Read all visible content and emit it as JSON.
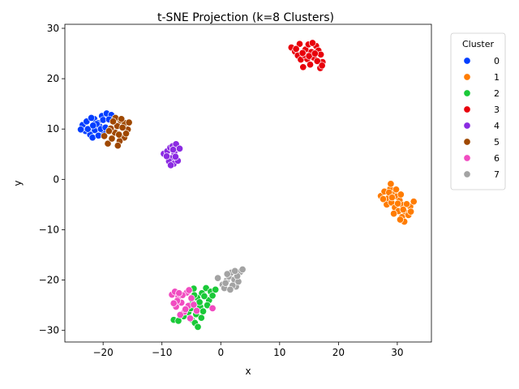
{
  "chart_data": {
    "type": "scatter",
    "title": "t-SNE Projection (k=8 Clusters)",
    "xlabel": "x",
    "ylabel": "y",
    "xlim": [
      -26.5,
      35.8
    ],
    "ylim": [
      -32.3,
      30.8
    ],
    "xticks": [
      -20,
      -10,
      0,
      10,
      20,
      30
    ],
    "yticks": [
      -30,
      -20,
      -10,
      0,
      10,
      20,
      30
    ],
    "grid": false,
    "legend": {
      "title": "Cluster",
      "placement": "outside-right-top",
      "entries": [
        "0",
        "1",
        "2",
        "3",
        "4",
        "5",
        "6",
        "7"
      ]
    },
    "series": [
      {
        "name": "0",
        "color": "#023eff",
        "points": [
          [
            -23.5,
            10.8
          ],
          [
            -22.8,
            11.5
          ],
          [
            -22.1,
            10.2
          ],
          [
            -21.5,
            12.0
          ],
          [
            -20.9,
            11.2
          ],
          [
            -20.2,
            12.6
          ],
          [
            -19.4,
            13.1
          ],
          [
            -18.6,
            12.8
          ],
          [
            -23.0,
            9.6
          ],
          [
            -22.2,
            8.9
          ],
          [
            -21.4,
            9.8
          ],
          [
            -20.6,
            10.5
          ],
          [
            -19.9,
            9.3
          ],
          [
            -21.8,
            8.3
          ],
          [
            -20.8,
            8.7
          ],
          [
            -22.6,
            10.0
          ],
          [
            -21.1,
            11.0
          ],
          [
            -20.0,
            11.8
          ],
          [
            -22.0,
            12.2
          ],
          [
            -19.0,
            11.9
          ],
          [
            -23.8,
            9.9
          ],
          [
            -20.4,
            10.0
          ],
          [
            -21.7,
            10.7
          ],
          [
            -19.6,
            10.3
          ]
        ]
      },
      {
        "name": "1",
        "color": "#ff7c00",
        "points": [
          [
            27.2,
            -3.3
          ],
          [
            27.8,
            -2.4
          ],
          [
            28.4,
            -3.8
          ],
          [
            28.8,
            -1.9
          ],
          [
            29.3,
            -2.9
          ],
          [
            29.9,
            -3.4
          ],
          [
            30.4,
            -4.2
          ],
          [
            28.2,
            -5.0
          ],
          [
            29.0,
            -4.6
          ],
          [
            29.6,
            -5.6
          ],
          [
            30.2,
            -6.3
          ],
          [
            30.9,
            -5.1
          ],
          [
            31.4,
            -6.6
          ],
          [
            30.8,
            -7.5
          ],
          [
            31.2,
            -8.4
          ],
          [
            31.9,
            -7.1
          ],
          [
            32.2,
            -5.4
          ],
          [
            32.8,
            -4.4
          ],
          [
            28.9,
            -0.9
          ],
          [
            29.8,
            -2.0
          ],
          [
            30.6,
            -3.0
          ],
          [
            31.6,
            -4.9
          ],
          [
            29.4,
            -6.8
          ],
          [
            30.5,
            -8.0
          ],
          [
            27.6,
            -3.9
          ],
          [
            28.6,
            -2.6
          ],
          [
            31.0,
            -6.0
          ],
          [
            32.3,
            -6.4
          ],
          [
            30.1,
            -4.8
          ],
          [
            29.1,
            -3.6
          ]
        ]
      },
      {
        "name": "2",
        "color": "#1ac938",
        "points": [
          [
            -8.0,
            -27.9
          ],
          [
            -7.2,
            -28.1
          ],
          [
            -6.3,
            -27.2
          ],
          [
            -5.5,
            -26.4
          ],
          [
            -5.0,
            -27.8
          ],
          [
            -4.4,
            -28.5
          ],
          [
            -3.9,
            -29.3
          ],
          [
            -4.8,
            -24.6
          ],
          [
            -4.0,
            -23.5
          ],
          [
            -3.2,
            -22.6
          ],
          [
            -2.5,
            -21.6
          ],
          [
            -1.7,
            -22.3
          ],
          [
            -0.9,
            -21.9
          ],
          [
            -2.0,
            -24.0
          ],
          [
            -3.5,
            -25.3
          ],
          [
            -4.6,
            -21.7
          ],
          [
            -5.6,
            -22.4
          ],
          [
            -3.0,
            -26.2
          ],
          [
            -2.8,
            -23.2
          ],
          [
            -4.2,
            -26.8
          ],
          [
            -1.4,
            -23.1
          ],
          [
            -3.6,
            -24.4
          ],
          [
            -2.3,
            -25.0
          ],
          [
            -5.1,
            -25.6
          ],
          [
            -4.5,
            -23.0
          ],
          [
            -3.3,
            -27.5
          ]
        ]
      },
      {
        "name": "3",
        "color": "#e8000b",
        "points": [
          [
            12.0,
            26.2
          ],
          [
            12.6,
            25.4
          ],
          [
            13.1,
            24.6
          ],
          [
            13.6,
            23.8
          ],
          [
            14.0,
            22.3
          ],
          [
            14.4,
            25.8
          ],
          [
            14.9,
            26.8
          ],
          [
            15.4,
            25.3
          ],
          [
            15.8,
            24.2
          ],
          [
            16.2,
            26.5
          ],
          [
            16.6,
            25.6
          ],
          [
            17.0,
            24.8
          ],
          [
            17.3,
            23.3
          ],
          [
            16.9,
            22.1
          ],
          [
            14.7,
            23.9
          ],
          [
            15.2,
            22.8
          ],
          [
            13.4,
            26.9
          ],
          [
            12.8,
            25.9
          ],
          [
            15.6,
            27.1
          ],
          [
            16.4,
            23.5
          ],
          [
            14.2,
            24.7
          ],
          [
            17.2,
            22.6
          ],
          [
            13.9,
            25.1
          ],
          [
            15.0,
            24.5
          ],
          [
            16.0,
            25.0
          ]
        ]
      },
      {
        "name": "4",
        "color": "#8b2be2",
        "points": [
          [
            -9.7,
            5.1
          ],
          [
            -9.1,
            5.6
          ],
          [
            -8.6,
            6.3
          ],
          [
            -8.2,
            6.6
          ],
          [
            -7.6,
            7.0
          ],
          [
            -7.0,
            6.1
          ],
          [
            -7.9,
            5.3
          ],
          [
            -8.4,
            4.2
          ],
          [
            -8.8,
            3.6
          ],
          [
            -8.0,
            3.1
          ],
          [
            -7.3,
            3.7
          ],
          [
            -8.5,
            2.8
          ],
          [
            -9.2,
            4.6
          ],
          [
            -7.7,
            4.5
          ],
          [
            -8.1,
            5.9
          ]
        ]
      },
      {
        "name": "5",
        "color": "#9f4800",
        "points": [
          [
            -19.8,
            8.6
          ],
          [
            -19.2,
            7.1
          ],
          [
            -18.5,
            8.1
          ],
          [
            -18.0,
            9.3
          ],
          [
            -17.6,
            10.6
          ],
          [
            -17.0,
            11.7
          ],
          [
            -16.3,
            11.2
          ],
          [
            -15.8,
            9.9
          ],
          [
            -16.4,
            8.3
          ],
          [
            -17.2,
            7.6
          ],
          [
            -17.5,
            6.7
          ],
          [
            -18.7,
            10.1
          ],
          [
            -17.9,
            12.2
          ],
          [
            -16.7,
            10.3
          ],
          [
            -15.6,
            11.3
          ],
          [
            -16.1,
            9.1
          ],
          [
            -18.3,
            11.5
          ],
          [
            -17.3,
            8.9
          ],
          [
            -19.0,
            9.6
          ],
          [
            -16.9,
            12.0
          ]
        ]
      },
      {
        "name": "6",
        "color": "#f14cc1",
        "points": [
          [
            -8.3,
            -22.9
          ],
          [
            -7.8,
            -22.3
          ],
          [
            -7.2,
            -23.3
          ],
          [
            -6.7,
            -24.5
          ],
          [
            -7.6,
            -25.3
          ],
          [
            -6.2,
            -26.3
          ],
          [
            -5.5,
            -25.1
          ],
          [
            -5.0,
            -23.6
          ],
          [
            -4.6,
            -24.9
          ],
          [
            -5.8,
            -22.5
          ],
          [
            -6.9,
            -26.9
          ],
          [
            -5.2,
            -27.6
          ],
          [
            -4.1,
            -26.1
          ],
          [
            -1.4,
            -25.6
          ],
          [
            -7.4,
            -24.1
          ],
          [
            -6.5,
            -23.0
          ],
          [
            -8.0,
            -24.6
          ],
          [
            -5.4,
            -22.0
          ],
          [
            -6.0,
            -25.8
          ],
          [
            -7.1,
            -22.6
          ]
        ]
      },
      {
        "name": "7",
        "color": "#a3a3a3",
        "points": [
          [
            -0.5,
            -19.6
          ],
          [
            0.3,
            -20.9
          ],
          [
            0.6,
            -21.6
          ],
          [
            1.0,
            -20.1
          ],
          [
            1.4,
            -19.3
          ],
          [
            1.8,
            -18.5
          ],
          [
            2.3,
            -19.9
          ],
          [
            2.6,
            -21.3
          ],
          [
            3.0,
            -20.3
          ],
          [
            3.3,
            -18.4
          ],
          [
            3.7,
            -17.9
          ],
          [
            2.0,
            -21.1
          ],
          [
            1.1,
            -18.8
          ],
          [
            2.8,
            -19.2
          ],
          [
            0.8,
            -20.6
          ],
          [
            1.6,
            -21.9
          ],
          [
            2.4,
            -18.2
          ]
        ]
      }
    ]
  }
}
